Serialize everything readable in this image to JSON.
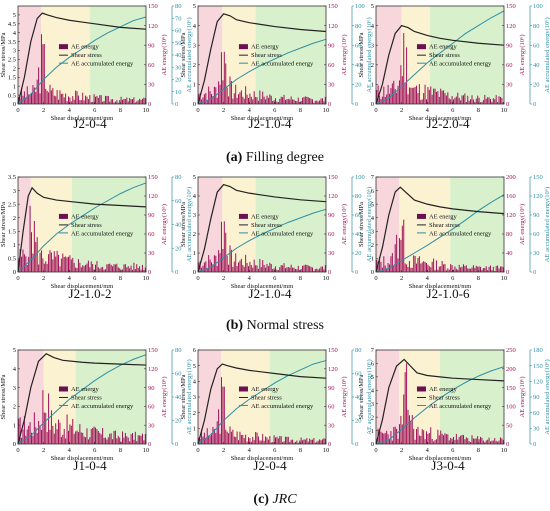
{
  "figure": {
    "captions": [
      {
        "letter": "(a)",
        "text": "Filling degree",
        "italic": false
      },
      {
        "letter": "(b)",
        "text": "Normal stress",
        "italic": false
      },
      {
        "letter": "(c)",
        "text": "JRC",
        "italic": true
      }
    ]
  },
  "legend_labels": [
    "AE energy",
    "Shear stress",
    "AE accumulated energy"
  ],
  "colors": {
    "ae_energy": "#a0135a",
    "ae_energy_legend": "#6b1050",
    "shear_stress": "#222222",
    "accumulated": "#2e8fa3",
    "stage_pink": "#f7d7dc",
    "stage_yellow": "#fbf2d2",
    "stage_green": "#d9f0cc"
  },
  "chart_data": [
    {
      "type": "bar+line",
      "label": "J2-0-4",
      "xlabel": "Shear displacement/mm",
      "ylabel": "Shear stress/MPa",
      "y2label": "AE energy(10⁶)",
      "y3label": "AE accumulated energy(10⁶)",
      "xlim": [
        0,
        10
      ],
      "xticks": [
        0,
        2,
        4,
        6,
        8,
        10
      ],
      "ylim": [
        0,
        5.5
      ],
      "yticks": [
        0,
        0.5,
        1,
        1.5,
        2,
        2.5,
        3,
        3.5,
        4,
        4.5,
        5
      ],
      "y2lim": [
        0,
        150
      ],
      "y2ticks": [
        0,
        30,
        60,
        90,
        120,
        150
      ],
      "y3lim": [
        0,
        80
      ],
      "y3ticks": [
        0,
        10,
        20,
        30,
        40,
        50,
        60,
        70,
        80
      ],
      "stages": [
        0,
        1.8,
        5.6,
        10
      ],
      "shear_stress": [
        [
          0,
          0
        ],
        [
          0.5,
          1.5
        ],
        [
          1.0,
          3.5
        ],
        [
          1.5,
          4.8
        ],
        [
          1.9,
          5.1
        ],
        [
          2.3,
          5.0
        ],
        [
          3,
          4.85
        ],
        [
          4,
          4.7
        ],
        [
          5,
          4.6
        ],
        [
          6,
          4.5
        ],
        [
          8,
          4.3
        ],
        [
          10,
          4.2
        ]
      ],
      "accumulated": [
        [
          0,
          0
        ],
        [
          1,
          8
        ],
        [
          2,
          20
        ],
        [
          3,
          30
        ],
        [
          4,
          38
        ],
        [
          5,
          45
        ],
        [
          6,
          52
        ],
        [
          7,
          58
        ],
        [
          8,
          63
        ],
        [
          9,
          68
        ],
        [
          10,
          71
        ]
      ],
      "ae_peak": 120,
      "ae_base": 30,
      "ae_peak_x": 1.9,
      "ae_seed": 3
    },
    {
      "type": "bar+line",
      "label": "J2-1.0-4",
      "xlabel": "Shear displacement/mm",
      "ylabel": "Shear stress/MPa",
      "y2label": "AE energy(10⁶)",
      "y3label": "AE accumulated energy(10⁶)",
      "xlim": [
        0,
        10
      ],
      "xticks": [
        0,
        2,
        4,
        6,
        8,
        10
      ],
      "ylim": [
        0,
        5
      ],
      "yticks": [
        0,
        1,
        2,
        3,
        4,
        5
      ],
      "y2lim": [
        0,
        150
      ],
      "y2ticks": [
        0,
        30,
        60,
        90,
        120,
        150
      ],
      "y3lim": [
        0,
        100
      ],
      "y3ticks": [
        0,
        20,
        40,
        60,
        80,
        100
      ],
      "stages": [
        0,
        1.9,
        4.5,
        10
      ],
      "shear_stress": [
        [
          0,
          0
        ],
        [
          0.5,
          1.2
        ],
        [
          1.0,
          2.8
        ],
        [
          1.5,
          4.2
        ],
        [
          2.0,
          4.6
        ],
        [
          2.5,
          4.5
        ],
        [
          3,
          4.3
        ],
        [
          4,
          4.15
        ],
        [
          5,
          4.05
        ],
        [
          6,
          3.95
        ],
        [
          8,
          3.8
        ],
        [
          10,
          3.7
        ]
      ],
      "accumulated": [
        [
          0,
          0
        ],
        [
          1,
          5
        ],
        [
          2,
          15
        ],
        [
          3,
          25
        ],
        [
          4,
          33
        ],
        [
          5,
          40
        ],
        [
          6,
          46
        ],
        [
          7,
          52
        ],
        [
          8,
          57
        ],
        [
          9,
          62
        ],
        [
          10,
          66
        ]
      ],
      "ae_peak": 130,
      "ae_base": 32,
      "ae_peak_x": 2.0,
      "ae_seed": 7
    },
    {
      "type": "bar+line",
      "label": "J2-2.0-4",
      "xlabel": "Shear displacement/mm",
      "ylabel": "Shear stress/MPa",
      "y2label": "AE energy(10⁶)",
      "y3label": "AE accumulated energy(10⁶)",
      "xlim": [
        0,
        10
      ],
      "xticks": [
        0,
        2,
        4,
        6,
        8,
        10
      ],
      "ylim": [
        0,
        5
      ],
      "yticks": [
        0,
        1,
        2,
        3,
        4,
        5
      ],
      "y2lim": [
        0,
        150
      ],
      "y2ticks": [
        0,
        30,
        60,
        90,
        120,
        150
      ],
      "y3lim": [
        0,
        100
      ],
      "y3ticks": [
        0,
        20,
        40,
        60,
        80,
        100
      ],
      "stages": [
        0,
        2.0,
        4.2,
        10
      ],
      "shear_stress": [
        [
          0,
          0
        ],
        [
          0.5,
          1.0
        ],
        [
          1.0,
          2.5
        ],
        [
          1.5,
          3.6
        ],
        [
          2.0,
          4.0
        ],
        [
          2.5,
          3.9
        ],
        [
          3,
          3.7
        ],
        [
          4,
          3.5
        ],
        [
          5,
          3.35
        ],
        [
          6,
          3.25
        ],
        [
          8,
          3.1
        ],
        [
          10,
          3.0
        ]
      ],
      "accumulated": [
        [
          0,
          0
        ],
        [
          1,
          6
        ],
        [
          2,
          18
        ],
        [
          3,
          30
        ],
        [
          4,
          42
        ],
        [
          5,
          52
        ],
        [
          6,
          62
        ],
        [
          7,
          72
        ],
        [
          8,
          80
        ],
        [
          9,
          88
        ],
        [
          10,
          95
        ]
      ],
      "ae_peak": 130,
      "ae_base": 38,
      "ae_peak_x": 2.2,
      "ae_seed": 11
    },
    {
      "type": "bar+line",
      "label": "J2-1.0-2",
      "xlabel": "Shear displacement/mm",
      "ylabel": "Shear stress/MPa",
      "y2label": "AE energy(10⁶)",
      "y3label": "AE accumulated energy(10⁶)",
      "xlim": [
        0,
        10
      ],
      "xticks": [
        0,
        2,
        4,
        6,
        8,
        10
      ],
      "ylim": [
        0,
        3.5
      ],
      "yticks": [
        0,
        0.5,
        1,
        1.5,
        2,
        2.5,
        3,
        3.5
      ],
      "y2lim": [
        0,
        150
      ],
      "y2ticks": [
        0,
        30,
        60,
        90,
        120,
        150
      ],
      "y3lim": [
        0,
        80
      ],
      "y3ticks": [
        0,
        20,
        40,
        60,
        80
      ],
      "stages": [
        0,
        1.0,
        4.2,
        10
      ],
      "shear_stress": [
        [
          0,
          0
        ],
        [
          0.4,
          1.5
        ],
        [
          0.8,
          2.8
        ],
        [
          1.1,
          3.1
        ],
        [
          1.5,
          2.9
        ],
        [
          2,
          2.75
        ],
        [
          3,
          2.65
        ],
        [
          4,
          2.6
        ],
        [
          6,
          2.5
        ],
        [
          8,
          2.45
        ],
        [
          10,
          2.4
        ]
      ],
      "accumulated": [
        [
          0,
          0
        ],
        [
          1,
          10
        ],
        [
          2,
          22
        ],
        [
          3,
          32
        ],
        [
          4,
          40
        ],
        [
          5,
          47
        ],
        [
          6,
          54
        ],
        [
          7,
          60
        ],
        [
          8,
          66
        ],
        [
          9,
          71
        ],
        [
          10,
          75
        ]
      ],
      "ae_peak": 120,
      "ae_base": 42,
      "ae_peak_x": 1.1,
      "ae_seed": 5
    },
    {
      "type": "bar+line",
      "label": "J2-1.0-4",
      "xlabel": "Shear displacement/mm",
      "ylabel": "Shear stress/MPa",
      "y2label": "AE energy(10⁶)",
      "y3label": "AE accumulated energy(10⁶)",
      "xlim": [
        0,
        10
      ],
      "xticks": [
        0,
        2,
        4,
        6,
        8,
        10
      ],
      "ylim": [
        0,
        5
      ],
      "yticks": [
        0,
        1,
        2,
        3,
        4,
        5
      ],
      "y2lim": [
        0,
        150
      ],
      "y2ticks": [
        0,
        30,
        60,
        90,
        120,
        150
      ],
      "y3lim": [
        0,
        100
      ],
      "y3ticks": [
        0,
        20,
        40,
        60,
        80,
        100
      ],
      "stages": [
        0,
        1.9,
        4.5,
        10
      ],
      "shear_stress": [
        [
          0,
          0
        ],
        [
          0.5,
          1.2
        ],
        [
          1.0,
          2.8
        ],
        [
          1.5,
          4.2
        ],
        [
          2.0,
          4.6
        ],
        [
          2.5,
          4.5
        ],
        [
          3,
          4.3
        ],
        [
          4,
          4.15
        ],
        [
          5,
          4.05
        ],
        [
          6,
          3.95
        ],
        [
          8,
          3.8
        ],
        [
          10,
          3.7
        ]
      ],
      "accumulated": [
        [
          0,
          0
        ],
        [
          1,
          5
        ],
        [
          2,
          15
        ],
        [
          3,
          25
        ],
        [
          4,
          33
        ],
        [
          5,
          40
        ],
        [
          6,
          46
        ],
        [
          7,
          52
        ],
        [
          8,
          57
        ],
        [
          9,
          62
        ],
        [
          10,
          66
        ]
      ],
      "ae_peak": 130,
      "ae_base": 32,
      "ae_peak_x": 2.0,
      "ae_seed": 7
    },
    {
      "type": "bar+line",
      "label": "J2-1.0-6",
      "xlabel": "Shear displacement/mm",
      "ylabel": "Shear stress/MPa",
      "y2label": "AE energy(10⁶)",
      "y3label": "AE accumulated energy(10⁶)",
      "xlim": [
        0,
        10
      ],
      "xticks": [
        0,
        2,
        4,
        6,
        8,
        10
      ],
      "ylim": [
        0,
        7
      ],
      "yticks": [
        0,
        1,
        2,
        3,
        4,
        5,
        6,
        7
      ],
      "y2lim": [
        0,
        200
      ],
      "y2ticks": [
        0,
        40,
        80,
        120,
        160,
        200
      ],
      "y3lim": [
        0,
        150
      ],
      "y3ticks": [
        0,
        30,
        60,
        90,
        120,
        150
      ],
      "stages": [
        0,
        1.8,
        5.8,
        10
      ],
      "shear_stress": [
        [
          0,
          0
        ],
        [
          0.5,
          1.8
        ],
        [
          1.0,
          4.2
        ],
        [
          1.5,
          5.9
        ],
        [
          1.9,
          6.25
        ],
        [
          2.3,
          5.9
        ],
        [
          3,
          5.3
        ],
        [
          4,
          5.0
        ],
        [
          5,
          4.8
        ],
        [
          6,
          4.65
        ],
        [
          8,
          4.45
        ],
        [
          10,
          4.3
        ]
      ],
      "accumulated": [
        [
          0,
          0
        ],
        [
          1,
          6
        ],
        [
          2,
          18
        ],
        [
          3,
          30
        ],
        [
          4,
          42
        ],
        [
          5,
          55
        ],
        [
          6,
          68
        ],
        [
          7,
          82
        ],
        [
          8,
          97
        ],
        [
          9,
          110
        ],
        [
          10,
          122
        ]
      ],
      "ae_peak": 170,
      "ae_base": 40,
      "ae_peak_x": 1.9,
      "ae_seed": 13
    },
    {
      "type": "bar+line",
      "label": "J1-0-4",
      "xlabel": "Shear displacement/mm",
      "ylabel": "Shear stress/MPa",
      "y2label": "AE energy(10⁶)",
      "y3label": "AE accumulated energy(10⁶)",
      "xlim": [
        0,
        10
      ],
      "xticks": [
        0,
        2,
        4,
        6,
        8,
        10
      ],
      "ylim": [
        0,
        5
      ],
      "yticks": [
        0,
        1,
        2,
        3,
        4,
        5
      ],
      "y2lim": [
        0,
        150
      ],
      "y2ticks": [
        0,
        30,
        60,
        90,
        120,
        150
      ],
      "y3lim": [
        0,
        80
      ],
      "y3ticks": [
        0,
        20,
        40,
        60,
        80
      ],
      "stages": [
        0,
        2.0,
        4.5,
        10
      ],
      "shear_stress": [
        [
          0,
          0
        ],
        [
          0.5,
          1.3
        ],
        [
          1.0,
          3.0
        ],
        [
          1.6,
          4.4
        ],
        [
          2.2,
          4.8
        ],
        [
          2.8,
          4.6
        ],
        [
          3.5,
          4.45
        ],
        [
          5,
          4.35
        ],
        [
          6,
          4.3
        ],
        [
          8,
          4.25
        ],
        [
          10,
          4.2
        ]
      ],
      "accumulated": [
        [
          0,
          0
        ],
        [
          1,
          7
        ],
        [
          2,
          18
        ],
        [
          3,
          28
        ],
        [
          4,
          38
        ],
        [
          5,
          46
        ],
        [
          6,
          54
        ],
        [
          7,
          61
        ],
        [
          8,
          67
        ],
        [
          9,
          72
        ],
        [
          10,
          76
        ]
      ],
      "ae_peak": 125,
      "ae_base": 55,
      "ae_peak_x": 2.1,
      "ae_seed": 17
    },
    {
      "type": "bar+line",
      "label": "J2-0-4",
      "xlabel": "Shear displacement/mm",
      "ylabel": "Shear stress/MPa",
      "y2label": "AE energy(10⁶)",
      "y3label": "AE accumulated energy(10⁶)",
      "xlim": [
        0,
        10
      ],
      "xticks": [
        0,
        2,
        4,
        6,
        8,
        10
      ],
      "ylim": [
        0,
        6
      ],
      "yticks": [
        0,
        1,
        2,
        3,
        4,
        5,
        6
      ],
      "y2lim": [
        0,
        150
      ],
      "y2ticks": [
        0,
        30,
        60,
        90,
        120,
        150
      ],
      "y3lim": [
        0,
        80
      ],
      "y3ticks": [
        0,
        20,
        40,
        60,
        80
      ],
      "stages": [
        0,
        1.8,
        5.6,
        10
      ],
      "shear_stress": [
        [
          0,
          0
        ],
        [
          0.5,
          1.5
        ],
        [
          1.0,
          3.5
        ],
        [
          1.5,
          4.8
        ],
        [
          1.9,
          5.1
        ],
        [
          2.3,
          5.0
        ],
        [
          3,
          4.85
        ],
        [
          4,
          4.7
        ],
        [
          5,
          4.6
        ],
        [
          6,
          4.5
        ],
        [
          8,
          4.3
        ],
        [
          10,
          4.2
        ]
      ],
      "accumulated": [
        [
          0,
          0
        ],
        [
          1,
          8
        ],
        [
          2,
          20
        ],
        [
          3,
          30
        ],
        [
          4,
          38
        ],
        [
          5,
          45
        ],
        [
          6,
          52
        ],
        [
          7,
          58
        ],
        [
          8,
          63
        ],
        [
          9,
          68
        ],
        [
          10,
          71
        ]
      ],
      "ae_peak": 120,
      "ae_base": 28,
      "ae_peak_x": 1.9,
      "ae_seed": 3
    },
    {
      "type": "bar+line",
      "label": "J3-0-4",
      "xlabel": "Shear displacement/mm",
      "ylabel": "Shear stress/MPa",
      "y2label": "AE energy(10⁶)",
      "y3label": "AE accumulated energy(10⁶)",
      "xlim": [
        0,
        10
      ],
      "xticks": [
        0,
        2,
        4,
        6,
        8,
        10
      ],
      "ylim": [
        0,
        7
      ],
      "yticks": [
        0,
        1,
        2,
        3,
        4,
        5,
        6,
        7
      ],
      "y2lim": [
        0,
        250
      ],
      "y2ticks": [
        0,
        50,
        100,
        150,
        200,
        250
      ],
      "y3lim": [
        0,
        180
      ],
      "y3ticks": [
        0,
        30,
        60,
        90,
        120,
        150,
        180
      ],
      "stages": [
        0,
        1.8,
        5.0,
        10
      ],
      "shear_stress": [
        [
          0,
          0
        ],
        [
          0.5,
          1.8
        ],
        [
          1.0,
          4.2
        ],
        [
          1.6,
          5.8
        ],
        [
          2.2,
          6.3
        ],
        [
          2.7,
          5.8
        ],
        [
          3.2,
          5.3
        ],
        [
          4,
          5.1
        ],
        [
          5,
          5.0
        ],
        [
          6,
          4.9
        ],
        [
          8,
          4.8
        ],
        [
          10,
          4.7
        ]
      ],
      "accumulated": [
        [
          0,
          0
        ],
        [
          1,
          8
        ],
        [
          2,
          28
        ],
        [
          3,
          50
        ],
        [
          4,
          70
        ],
        [
          5,
          88
        ],
        [
          6,
          104
        ],
        [
          7,
          118
        ],
        [
          8,
          130
        ],
        [
          9,
          140
        ],
        [
          10,
          148
        ]
      ],
      "ae_peak": 220,
      "ae_base": 55,
      "ae_peak_x": 2.4,
      "ae_seed": 23
    }
  ]
}
